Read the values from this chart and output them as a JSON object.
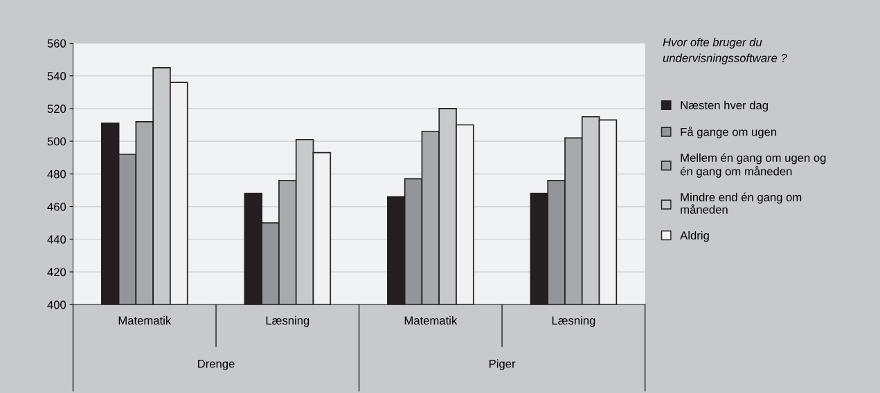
{
  "chart_data": {
    "type": "bar",
    "categories": [
      "Matematik",
      "Læsning",
      "Matematik",
      "Læsning"
    ],
    "annotations": [
      "Drenge",
      "Piger"
    ],
    "legend_title": "Hvor ofte bruger du undervisningssoftware ?",
    "series": [
      {
        "name": "Næsten hver dag",
        "color": "#231f20",
        "values": [
          511,
          468,
          466,
          468
        ]
      },
      {
        "name": "Få gange om ugen",
        "color": "#939598",
        "values": [
          492,
          450,
          477,
          476
        ]
      },
      {
        "name": "Mellem én gang om ugen og\nén gang om måneden",
        "color": "#a7a9ac",
        "values": [
          512,
          476,
          506,
          502
        ]
      },
      {
        "name": "Mindre end én gang om\nmåneden",
        "color": "#c8c9cb",
        "values": [
          545,
          501,
          520,
          515
        ]
      },
      {
        "name": "Aldrig",
        "color": "#f1f1f2",
        "values": [
          536,
          493,
          510,
          513
        ]
      }
    ],
    "ylim": [
      400,
      560
    ],
    "yticks": [
      400,
      420,
      440,
      460,
      480,
      500,
      520,
      540,
      560
    ],
    "grid": "y",
    "legend": "right"
  }
}
